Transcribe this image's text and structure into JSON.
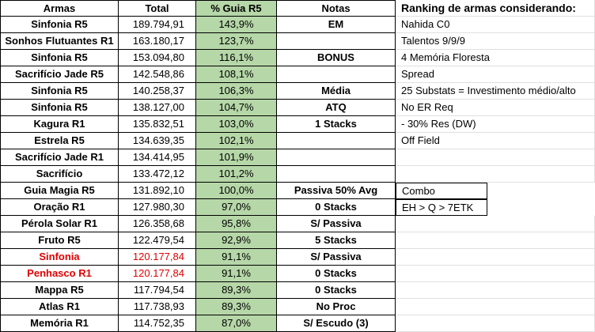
{
  "headers": {
    "armas": "Armas",
    "total": "Total",
    "guia": "% Guia R5",
    "notas": "Notas",
    "side": "Ranking de armas considerando:"
  },
  "rows": [
    {
      "arma": "Sinfonia R5",
      "total": "189.794,91",
      "pct": "143,9%",
      "nota": "EM",
      "side": "Nahida C0",
      "red": false
    },
    {
      "arma": "Sonhos Flutuantes R1",
      "total": "163.180,17",
      "pct": "123,7%",
      "nota": "",
      "side": "Talentos 9/9/9",
      "red": false
    },
    {
      "arma": "Sinfonia R5",
      "total": "153.094,80",
      "pct": "116,1%",
      "nota": "BONUS",
      "side": "4 Memória Floresta",
      "red": false
    },
    {
      "arma": "Sacrifício Jade R5",
      "total": "142.548,86",
      "pct": "108,1%",
      "nota": "",
      "side": "Spread",
      "red": false
    },
    {
      "arma": "Sinfonia R5",
      "total": "140.258,37",
      "pct": "106,3%",
      "nota": "Média",
      "side": "25 Substats = Investimento médio/alto",
      "red": false
    },
    {
      "arma": "Sinfonia R5",
      "total": "138.127,00",
      "pct": "104,7%",
      "nota": "ATQ",
      "side": "No ER Req",
      "red": false
    },
    {
      "arma": "Kagura R1",
      "total": "135.832,51",
      "pct": "103,0%",
      "nota": "1 Stacks",
      "side": "- 30% Res (DW)",
      "red": false
    },
    {
      "arma": "Estrela R5",
      "total": "134.639,35",
      "pct": "102,1%",
      "nota": "",
      "side": "Off Field",
      "red": false
    },
    {
      "arma": "Sacrifício Jade R1",
      "total": "134.414,95",
      "pct": "101,9%",
      "nota": "",
      "side": "",
      "red": false
    },
    {
      "arma": "Sacrifício",
      "total": "133.472,12",
      "pct": "101,2%",
      "nota": "",
      "side": "",
      "red": false
    },
    {
      "arma": "Guia Magia R5",
      "total": "131.892,10",
      "pct": "100,0%",
      "nota": "Passiva 50% Avg",
      "side": "Combo",
      "red": false,
      "boxed": true
    },
    {
      "arma": "Oração R1",
      "total": "127.980,30",
      "pct": "97,0%",
      "nota": "0 Stacks",
      "side": "EH > Q > 7ETK",
      "red": false,
      "boxed": true
    },
    {
      "arma": "Pérola Solar R1",
      "total": "126.358,68",
      "pct": "95,8%",
      "nota": "S/ Passiva",
      "side": "",
      "red": false
    },
    {
      "arma": "Fruto R5",
      "total": "122.479,54",
      "pct": "92,9%",
      "nota": "5 Stacks",
      "side": "",
      "red": false
    },
    {
      "arma": "Sinfonia",
      "total": "120.177,84",
      "pct": "91,1%",
      "nota": "S/ Passiva",
      "side": "",
      "red": true
    },
    {
      "arma": "Penhasco R1",
      "total": "120.177,84",
      "pct": "91,1%",
      "nota": "0 Stacks",
      "side": "",
      "red": true
    },
    {
      "arma": "Mappa R5",
      "total": "117.794,54",
      "pct": "89,3%",
      "nota": "0 Stacks",
      "side": "",
      "red": false
    },
    {
      "arma": "Atlas R1",
      "total": "117.738,93",
      "pct": "89,3%",
      "nota": "No Proc",
      "side": "",
      "red": false
    },
    {
      "arma": "Memória R1",
      "total": "114.752,35",
      "pct": "87,0%",
      "nota": "S/ Escudo (3)",
      "side": "",
      "red": false
    }
  ]
}
